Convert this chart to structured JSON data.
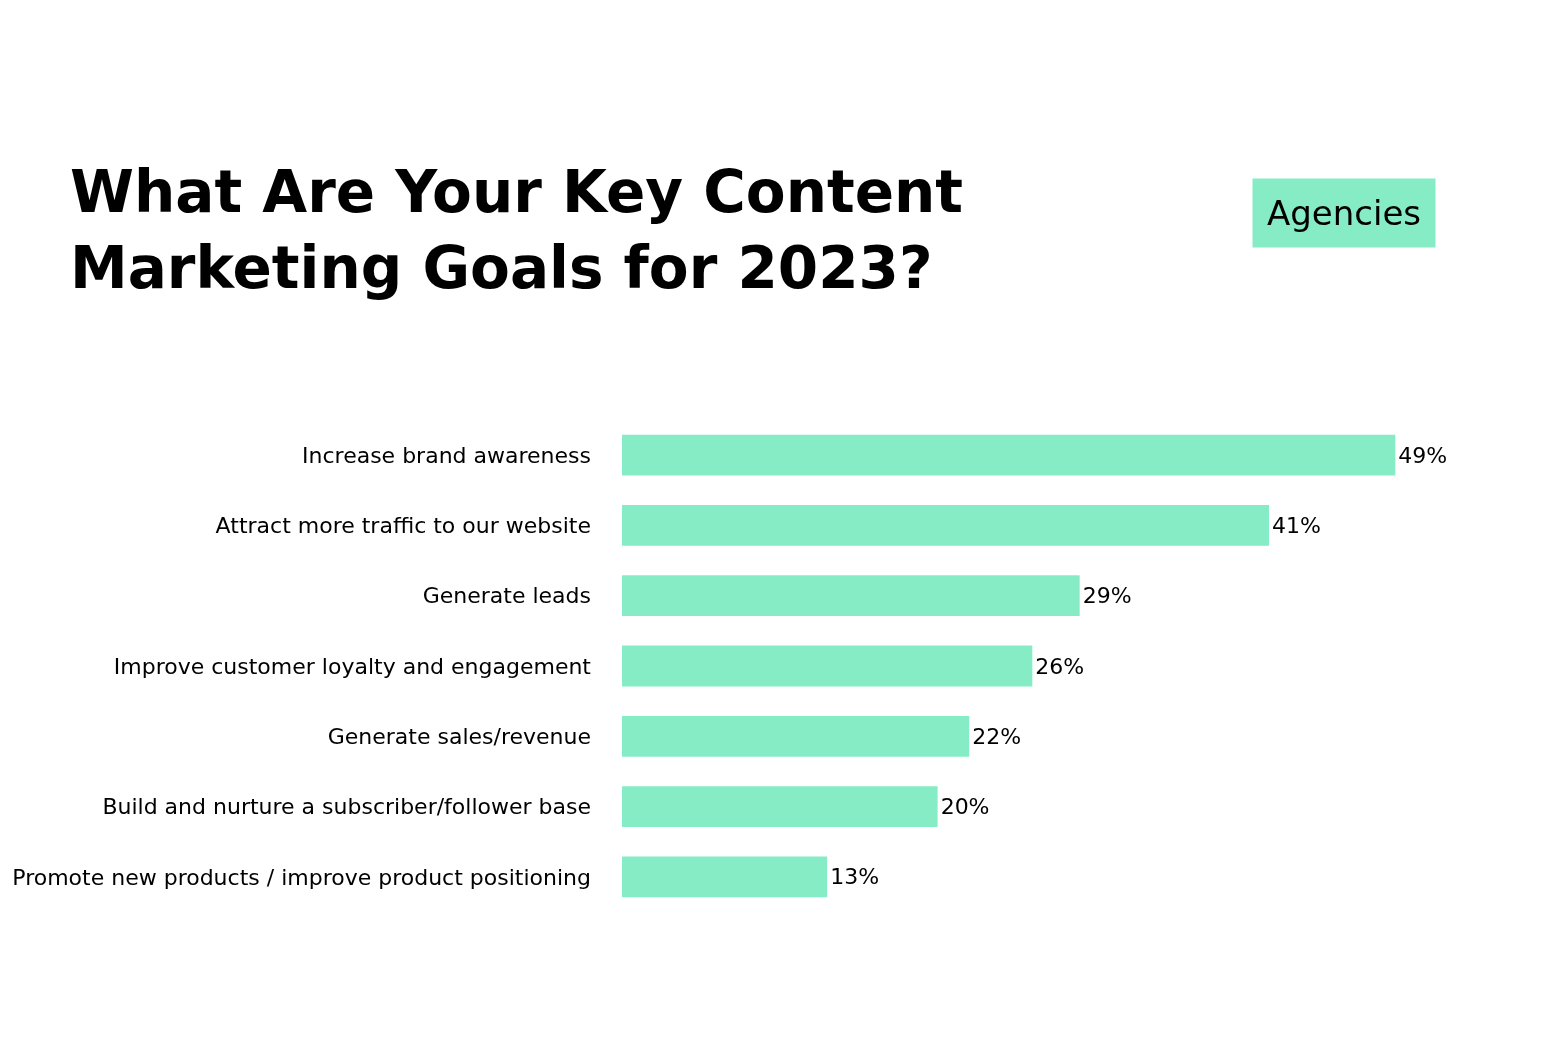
{
  "chart_data": {
    "type": "bar",
    "orientation": "horizontal",
    "title": "What Are Your Key Content Marketing Goals for 2023?",
    "subtitle": "Agencies",
    "categories": [
      "Increase brand awareness",
      "Attract more traffic to our website",
      "Generate leads",
      "Improve customer loyalty and engagement",
      "Generate sales/revenue",
      "Build and nurture a subscriber/follower base",
      "Promote new products / improve product positioning"
    ],
    "values": [
      49,
      41,
      29,
      26,
      22,
      20,
      13
    ],
    "value_labels": [
      "49%",
      "41%",
      "29%",
      "26%",
      "22%",
      "20%",
      "13%"
    ],
    "color": "#86ecc6",
    "tick_labels": "y",
    "legend": false
  }
}
